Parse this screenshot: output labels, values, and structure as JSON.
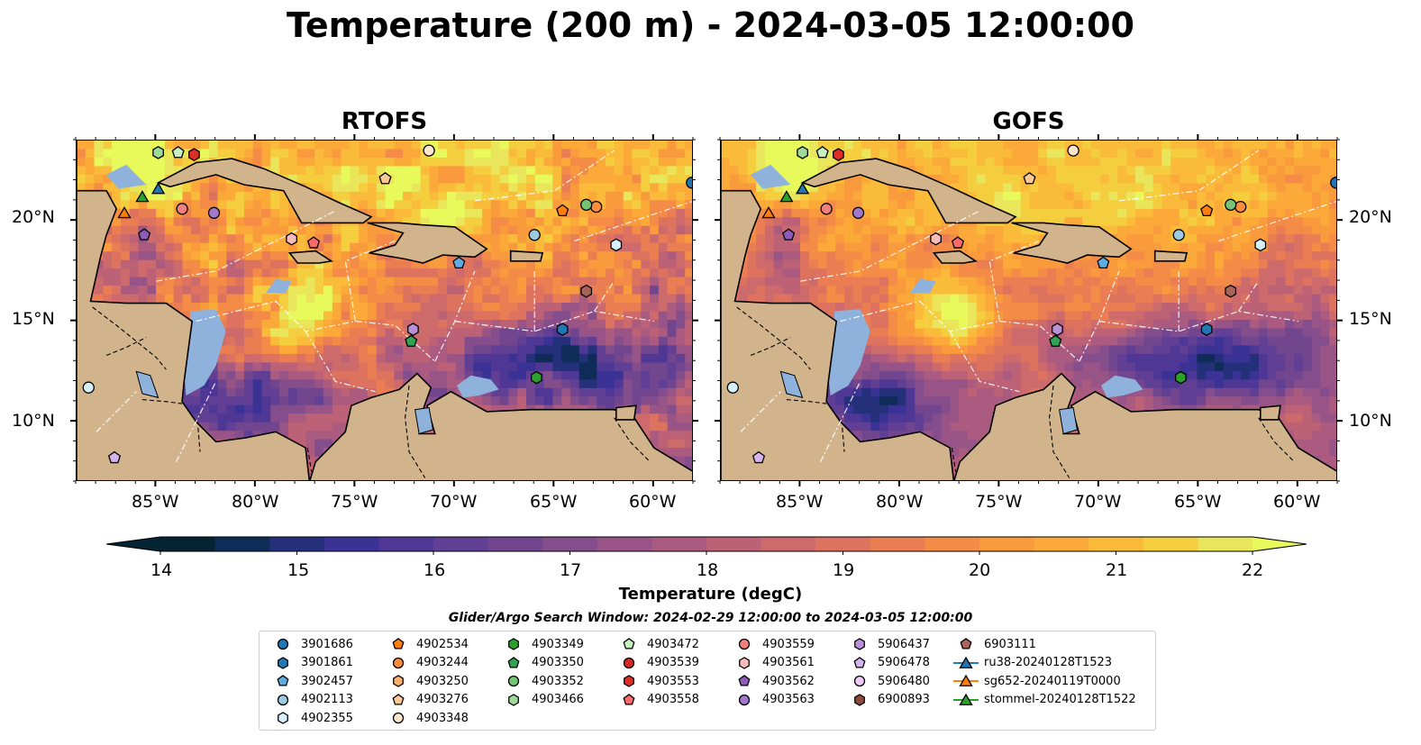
{
  "figure": {
    "title": "Temperature (200 m) - 2024-03-05 12:00:00",
    "panels": [
      {
        "title": "RTOFS"
      },
      {
        "title": "GOFS"
      }
    ]
  },
  "axes": {
    "lon_ticks": [
      "85°W",
      "80°W",
      "75°W",
      "70°W",
      "65°W",
      "60°W"
    ],
    "lat_ticks": [
      "20°N",
      "15°N",
      "10°N"
    ],
    "lon_range": [
      -89,
      -58
    ],
    "lat_range": [
      7,
      24
    ]
  },
  "colorbar": {
    "label": "Temperature (degC)",
    "ticks": [
      "14",
      "15",
      "16",
      "17",
      "18",
      "19",
      "20",
      "21",
      "22"
    ],
    "range": [
      14,
      22
    ],
    "extend": "both",
    "colors": [
      "#042333",
      "#0f2b58",
      "#24307a",
      "#3a3294",
      "#4f3795",
      "#603f94",
      "#71468f",
      "#844d8c",
      "#985487",
      "#ab5b7f",
      "#bd6276",
      "#cd6a6b",
      "#dd735f",
      "#ea7e52",
      "#f48b46",
      "#f99a3d",
      "#fbaa39",
      "#fbbb3a",
      "#f5ce40",
      "#e9e65c"
    ],
    "over_color": "#e8fa5b",
    "under_color": "#042333"
  },
  "legend": {
    "search_window": "Glider/Argo Search Window: 2024-02-29 12:00:00 to 2024-03-05 12:00:00",
    "columns": [
      [
        {
          "label": "3901686",
          "marker": "circle",
          "color": "#1f77b4"
        },
        {
          "label": "3901861",
          "marker": "hexagon",
          "color": "#1f77b4"
        },
        {
          "label": "3902457",
          "marker": "pentagon",
          "color": "#5dade2"
        },
        {
          "label": "4902113",
          "marker": "circle",
          "color": "#9ecae1"
        },
        {
          "label": "4902355",
          "marker": "hexagon",
          "color": "#d6f0fb"
        }
      ],
      [
        {
          "label": "4902534",
          "marker": "pentagon",
          "color": "#ff7f0e"
        },
        {
          "label": "4903244",
          "marker": "circle",
          "color": "#fd8d3c"
        },
        {
          "label": "4903250",
          "marker": "hexagon",
          "color": "#fdae6b"
        },
        {
          "label": "4903276",
          "marker": "pentagon",
          "color": "#fdc896"
        },
        {
          "label": "4903348",
          "marker": "circle",
          "color": "#fee6ce"
        }
      ],
      [
        {
          "label": "4903349",
          "marker": "hexagon",
          "color": "#2ca02c"
        },
        {
          "label": "4903350",
          "marker": "pentagon",
          "color": "#31a354"
        },
        {
          "label": "4903352",
          "marker": "circle",
          "color": "#74c476"
        },
        {
          "label": "4903466",
          "marker": "hexagon",
          "color": "#a1d99b"
        }
      ],
      [
        {
          "label": "4903472",
          "marker": "pentagon",
          "color": "#c7f0c0"
        },
        {
          "label": "4903539",
          "marker": "circle",
          "color": "#d62728"
        },
        {
          "label": "4903553",
          "marker": "hexagon",
          "color": "#de2d26"
        },
        {
          "label": "4903558",
          "marker": "pentagon",
          "color": "#fb6a6a"
        }
      ],
      [
        {
          "label": "4903559",
          "marker": "circle",
          "color": "#f08080"
        },
        {
          "label": "4903561",
          "marker": "hexagon",
          "color": "#fcbcbc"
        },
        {
          "label": "4903562",
          "marker": "pentagon",
          "color": "#8e5bb8"
        },
        {
          "label": "4903563",
          "marker": "circle",
          "color": "#a377c9"
        }
      ],
      [
        {
          "label": "5906437",
          "marker": "hexagon",
          "color": "#b891d9"
        },
        {
          "label": "5906478",
          "marker": "pentagon",
          "color": "#d6b4f0"
        },
        {
          "label": "5906480",
          "marker": "circle",
          "color": "#eccbf7"
        },
        {
          "label": "6900893",
          "marker": "hexagon",
          "color": "#8c4a3c"
        }
      ],
      [
        {
          "label": "6903111",
          "marker": "pentagon",
          "color": "#a86458"
        },
        {
          "label": "ru38-20240128T1523",
          "marker": "line-triangle",
          "color": "#1f77b4"
        },
        {
          "label": "sg652-20240119T0000",
          "marker": "line-triangle",
          "color": "#ff7f0e"
        },
        {
          "label": "stommel-20240128T1522",
          "marker": "line-triangle",
          "color": "#2ca02c"
        }
      ]
    ]
  },
  "map_markers": [
    {
      "lon": -58.1,
      "lat": 21.9,
      "marker": "circle",
      "color": "#1f77b4"
    },
    {
      "lon": -61.9,
      "lat": 18.8,
      "marker": "hexagon",
      "color": "#d6f0fb"
    },
    {
      "lon": -69.8,
      "lat": 17.9,
      "marker": "pentagon",
      "color": "#5dade2"
    },
    {
      "lon": -66.0,
      "lat": 19.3,
      "marker": "circle",
      "color": "#9ecae1"
    },
    {
      "lon": -64.6,
      "lat": 14.6,
      "marker": "hexagon",
      "color": "#1f77b4"
    },
    {
      "lon": -88.4,
      "lat": 11.7,
      "marker": "circle",
      "color": "#d6f0fb"
    },
    {
      "lon": -64.6,
      "lat": 20.5,
      "marker": "pentagon",
      "color": "#ff7f0e"
    },
    {
      "lon": -62.9,
      "lat": 20.7,
      "marker": "circle",
      "color": "#fd8d3c"
    },
    {
      "lon": -63.4,
      "lat": 16.5,
      "marker": "hexagon",
      "color": "#a86458"
    },
    {
      "lon": -73.5,
      "lat": 22.1,
      "marker": "pentagon",
      "color": "#fdc896"
    },
    {
      "lon": -71.3,
      "lat": 23.5,
      "marker": "circle",
      "color": "#fee6ce"
    },
    {
      "lon": -65.9,
      "lat": 12.2,
      "marker": "hexagon",
      "color": "#2ca02c"
    },
    {
      "lon": -72.2,
      "lat": 14.0,
      "marker": "pentagon",
      "color": "#31a354"
    },
    {
      "lon": -63.4,
      "lat": 20.8,
      "marker": "circle",
      "color": "#74c476"
    },
    {
      "lon": -84.9,
      "lat": 23.4,
      "marker": "hexagon",
      "color": "#a1d99b"
    },
    {
      "lon": -83.9,
      "lat": 23.4,
      "marker": "pentagon",
      "color": "#c7f0c0"
    },
    {
      "lon": -83.1,
      "lat": 23.3,
      "marker": "hexagon",
      "color": "#de2d26"
    },
    {
      "lon": -77.1,
      "lat": 18.9,
      "marker": "pentagon",
      "color": "#fb6a6a"
    },
    {
      "lon": -83.7,
      "lat": 20.6,
      "marker": "circle",
      "color": "#f08080"
    },
    {
      "lon": -78.2,
      "lat": 19.1,
      "marker": "hexagon",
      "color": "#fcbcbc"
    },
    {
      "lon": -85.6,
      "lat": 19.3,
      "marker": "pentagon",
      "color": "#8e5bb8"
    },
    {
      "lon": -82.1,
      "lat": 20.4,
      "marker": "circle",
      "color": "#a377c9"
    },
    {
      "lon": -72.1,
      "lat": 14.6,
      "marker": "hexagon",
      "color": "#b891d9"
    },
    {
      "lon": -87.1,
      "lat": 8.2,
      "marker": "pentagon",
      "color": "#d6b4f0"
    },
    {
      "lon": -84.9,
      "lat": 21.6,
      "marker": "triangle",
      "color": "#1f77b4"
    },
    {
      "lon": -86.6,
      "lat": 20.4,
      "marker": "triangle",
      "color": "#ff7f0e"
    },
    {
      "lon": -85.7,
      "lat": 21.2,
      "marker": "triangle",
      "color": "#2ca02c"
    }
  ]
}
